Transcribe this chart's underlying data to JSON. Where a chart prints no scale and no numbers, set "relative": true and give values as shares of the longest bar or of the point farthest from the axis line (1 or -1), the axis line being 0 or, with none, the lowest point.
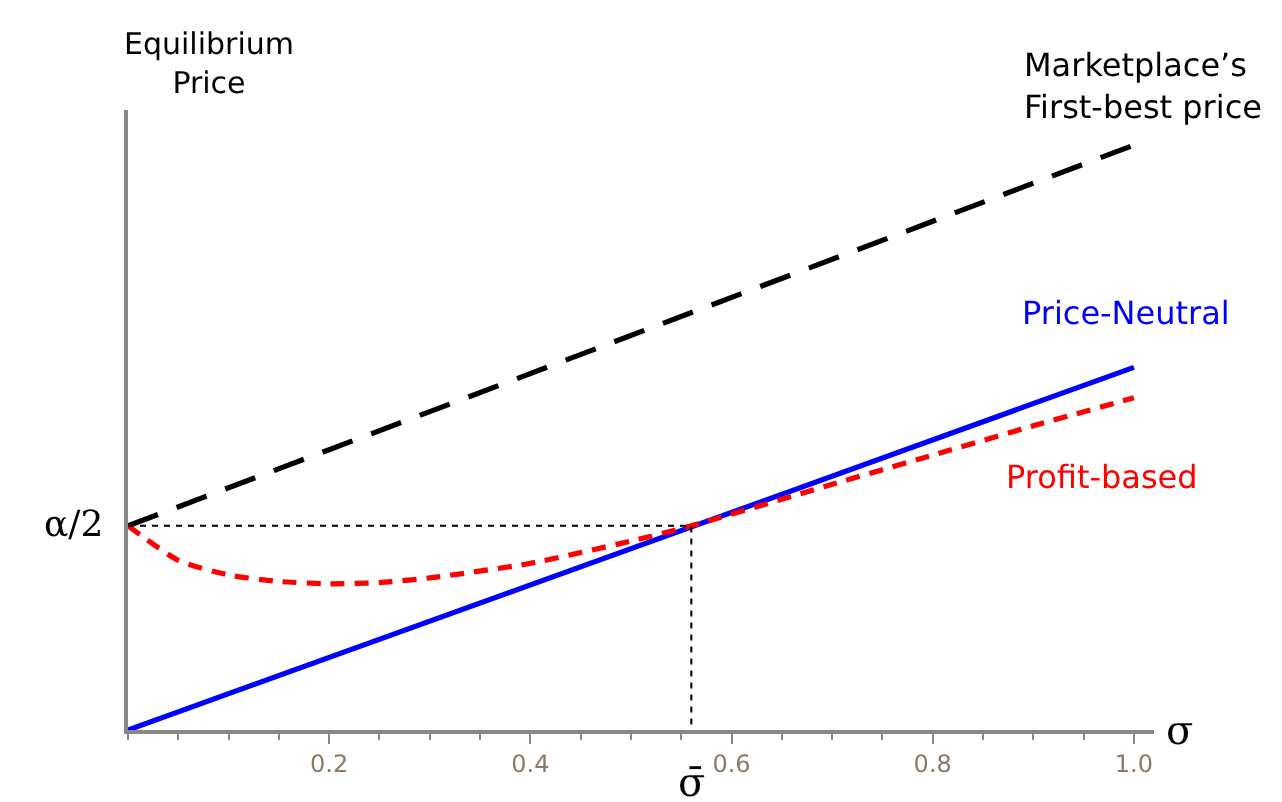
{
  "chart_data": {
    "type": "line",
    "relative": true,
    "ylabel": "Equilibrium\nPrice",
    "xlabel": "σ",
    "xlim": [
      0,
      1.02
    ],
    "xticks": [
      {
        "value": 0.2,
        "label": "0.2"
      },
      {
        "value": 0.4,
        "label": "0.4"
      },
      {
        "value": 0.6,
        "label": "0.6"
      },
      {
        "value": 0.8,
        "label": "0.8"
      },
      {
        "value": 1,
        "label": "1.0"
      }
    ],
    "marker": "none",
    "series": [
      {
        "name": "Marketplace’s\nFirst-best price",
        "color": "#000000",
        "line_style": "dashed",
        "x": [
          0,
          1
        ],
        "values": [
          0.349,
          1
        ]
      },
      {
        "name": "Price-Neutral",
        "color": "#0000ff",
        "line_style": "solid",
        "x": [
          0,
          1
        ],
        "values": [
          0,
          0.62
        ]
      },
      {
        "name": "Profit-based",
        "color": "#ff0000",
        "line_style": "dotted",
        "x": [
          0,
          0.05,
          0.1,
          0.15,
          0.2,
          0.25,
          0.3,
          0.4,
          0.5,
          0.56,
          0.7,
          0.8,
          0.9,
          1
        ],
        "values": [
          0.349,
          0.29,
          0.265,
          0.254,
          0.25,
          0.252,
          0.26,
          0.285,
          0.323,
          0.349,
          0.42,
          0.47,
          0.52,
          0.568
        ]
      },
      {
        "color": "#000000",
        "line_style": "dotted",
        "x": [
          0,
          0.56,
          0.56
        ],
        "values": [
          0.349,
          0.349,
          0
        ]
      }
    ],
    "annotations": [
      {
        "text": "α/2",
        "x": 0,
        "y": 0.349
      },
      {
        "text": "σ̄",
        "x": 0.56,
        "y": 0
      }
    ]
  }
}
